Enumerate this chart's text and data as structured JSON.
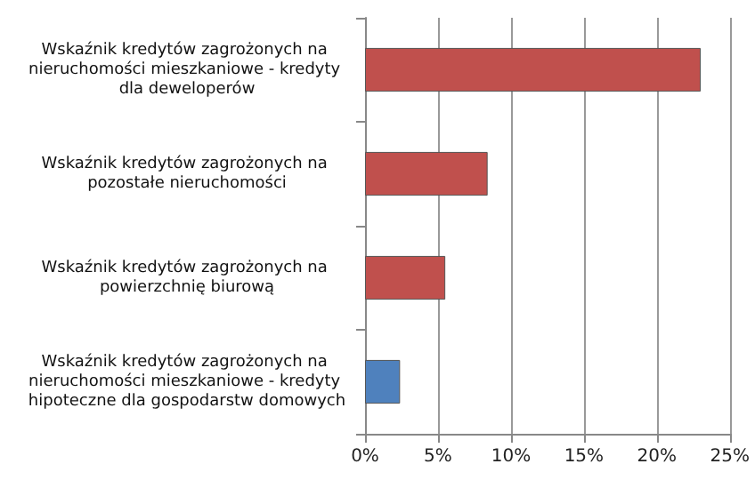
{
  "chart_data": {
    "type": "bar",
    "orientation": "horizontal",
    "categories": [
      "Wskaźnik kredytów zagrożonych na nieruchomości mieszkaniowe - kredyty dla deweloperów",
      "Wskaźnik kredytów zagrożonych na pozostałe nieruchomości",
      "Wskaźnik kredytów zagrożonych na powierzchnię biurową",
      "Wskaźnik kredytów zagrożonych na nieruchomości mieszkaniowe - kredyty hipoteczne dla gospodarstw domowych"
    ],
    "values": [
      23,
      8.4,
      5.5,
      2.4
    ],
    "colors": [
      "#c0504d",
      "#c0504d",
      "#c0504d",
      "#4f81bd"
    ],
    "xlim": [
      0,
      25
    ],
    "xticks": [
      {
        "value": 0,
        "label": "0%"
      },
      {
        "value": 5,
        "label": "5%"
      },
      {
        "value": 10,
        "label": "10%"
      },
      {
        "value": 15,
        "label": "15%"
      },
      {
        "value": 20,
        "label": "20%"
      },
      {
        "value": 25,
        "label": "25%"
      }
    ],
    "grid": "x"
  }
}
